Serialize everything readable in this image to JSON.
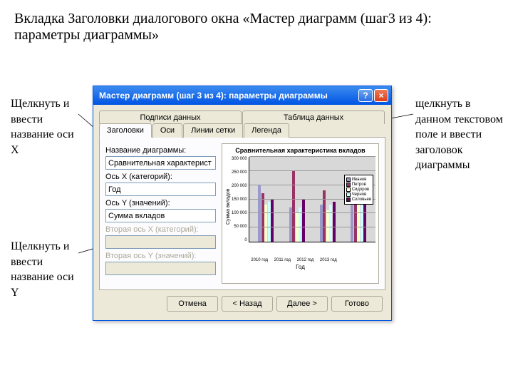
{
  "slide": {
    "title": "Вкладка Заголовки диалогового окна «Мастер диаграмм (шаг3 из 4): параметры диаграммы»"
  },
  "annotations": {
    "left1": "Щелкнуть и ввести название оси X",
    "left2": "Щелкнуть и ввести название оси Y",
    "right": "щелкнуть в данном текстовом поле и ввести заголовок диаграммы"
  },
  "dialog": {
    "title": "Мастер диаграмм (шаг 3 из 4): параметры диаграммы",
    "titlebar_bg": "#0054e3",
    "tabs_row1": [
      "Подписи данных",
      "Таблица данных"
    ],
    "tabs_row2": [
      "Заголовки",
      "Оси",
      "Линии сетки",
      "Легенда"
    ],
    "active_tab": "Заголовки",
    "fields": {
      "chart_title_label": "Название диаграммы:",
      "chart_title_value": "Сравнительная характерист",
      "x_label": "Ось X (категорий):",
      "x_value": "Год",
      "y_label": "Ось Y (значений):",
      "y_value": "Сумма вкладов",
      "x2_label": "Вторая ось X (категорий):",
      "x2_value": "",
      "y2_label": "Вторая ось Y (значений):",
      "y2_value": ""
    },
    "buttons": {
      "cancel": "Отмена",
      "back": "< Назад",
      "next": "Далее >",
      "finish": "Готово"
    }
  },
  "chart": {
    "type": "bar",
    "title": "Сравнительная характеристика вкладов",
    "y_axis_label": "Сумма вкладов",
    "x_axis_label": "Год",
    "categories": [
      "2010 год",
      "2011 год",
      "2012 год",
      "2013 год"
    ],
    "series": [
      {
        "name": "Иванов",
        "color": "#9999cc",
        "values": [
          200000,
          120000,
          130000,
          140000
        ]
      },
      {
        "name": "Петров",
        "color": "#993366",
        "values": [
          170000,
          250000,
          180000,
          200000
        ]
      },
      {
        "name": "Сидоров",
        "color": "#ffffcc",
        "values": [
          130000,
          100000,
          110000,
          130000
        ]
      },
      {
        "name": "Чернов",
        "color": "#ccffff",
        "values": [
          140000,
          120000,
          130000,
          150000
        ]
      },
      {
        "name": "Соловьев",
        "color": "#660066",
        "values": [
          150000,
          150000,
          140000,
          160000
        ]
      }
    ],
    "ylim": [
      0,
      300000
    ],
    "ytick_step": 50000,
    "y_ticks": [
      "300 000",
      "250 000",
      "200 000",
      "150 000",
      "100 000",
      "50 000",
      "0"
    ],
    "background_color": "#d8d8d8",
    "grid_color": "#999999"
  },
  "colors": {
    "dialog_bg": "#ece9d8",
    "border": "#aca899",
    "input_border": "#7f9db9"
  }
}
